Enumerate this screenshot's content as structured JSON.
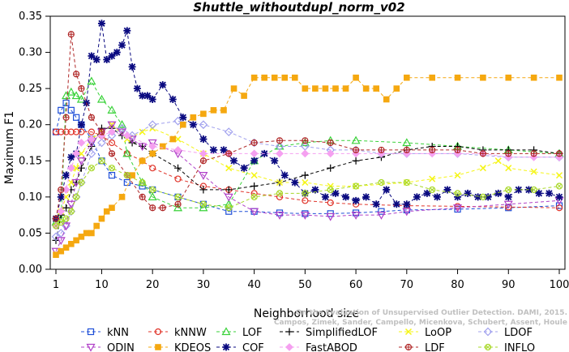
{
  "chart_data": {
    "type": "line",
    "title": "Shuttle_withoutdupl_norm_v02",
    "xlabel": "Neighborhood size",
    "ylabel": "Maximum F1",
    "xlim": [
      1,
      100
    ],
    "ylim": [
      0,
      0.35
    ],
    "xticks": [
      1,
      10,
      20,
      30,
      40,
      50,
      60,
      70,
      80,
      90,
      100
    ],
    "yticks": [
      "0.00",
      "0.05",
      "0.10",
      "0.15",
      "0.20",
      "0.25",
      "0.30",
      "0.35"
    ],
    "grid": false,
    "legend_position": "bottom",
    "watermark": "Campos, Zimek, Sander, Campello, Micenkova, Schubert, Assent, Houle  On the Evaluation of Unsupervised Outlier Detection. DAMI, 2015.",
    "series": [
      {
        "name": "kNN",
        "color": "#1f4fd8",
        "marker": "square",
        "x": [
          1,
          2,
          3,
          4,
          5,
          6,
          8,
          10,
          12,
          15,
          18,
          20,
          25,
          30,
          35,
          40,
          45,
          50,
          55,
          60,
          65,
          70,
          80,
          90,
          100
        ],
        "y": [
          0.19,
          0.22,
          0.23,
          0.22,
          0.21,
          0.2,
          0.18,
          0.15,
          0.13,
          0.12,
          0.115,
          0.11,
          0.1,
          0.09,
          0.08,
          0.08,
          0.078,
          0.077,
          0.077,
          0.078,
          0.08,
          0.082,
          0.083,
          0.085,
          0.088
        ]
      },
      {
        "name": "kNNW",
        "color": "#e0342a",
        "marker": "circle",
        "x": [
          1,
          2,
          3,
          4,
          5,
          6,
          8,
          10,
          12,
          15,
          18,
          20,
          25,
          30,
          35,
          40,
          45,
          50,
          55,
          60,
          70,
          80,
          90,
          100
        ],
        "y": [
          0.19,
          0.19,
          0.19,
          0.19,
          0.19,
          0.19,
          0.19,
          0.185,
          0.175,
          0.16,
          0.15,
          0.14,
          0.125,
          0.115,
          0.11,
          0.105,
          0.1,
          0.095,
          0.092,
          0.09,
          0.088,
          0.087,
          0.086,
          0.085
        ]
      },
      {
        "name": "LOF",
        "color": "#3ad23a",
        "marker": "triangle",
        "x": [
          1,
          2,
          3,
          4,
          5,
          6,
          8,
          10,
          12,
          14,
          15,
          18,
          20,
          25,
          30,
          35,
          40,
          45,
          50,
          55,
          60,
          70,
          80,
          90,
          100
        ],
        "y": [
          0.065,
          0.07,
          0.24,
          0.245,
          0.24,
          0.235,
          0.26,
          0.235,
          0.22,
          0.2,
          0.16,
          0.12,
          0.1,
          0.085,
          0.085,
          0.09,
          0.15,
          0.17,
          0.175,
          0.178,
          0.178,
          0.175,
          0.17,
          0.165,
          0.16
        ]
      },
      {
        "name": "SimplifiedLOF",
        "color": "#000000",
        "marker": "plus",
        "x": [
          1,
          2,
          3,
          4,
          5,
          6,
          8,
          10,
          12,
          14,
          16,
          18,
          20,
          25,
          30,
          35,
          40,
          45,
          50,
          55,
          60,
          65,
          70,
          75,
          80,
          85,
          90,
          95,
          100
        ],
        "y": [
          0.04,
          0.075,
          0.085,
          0.11,
          0.12,
          0.14,
          0.17,
          0.195,
          0.195,
          0.185,
          0.175,
          0.17,
          0.16,
          0.14,
          0.11,
          0.11,
          0.115,
          0.12,
          0.13,
          0.14,
          0.15,
          0.155,
          0.165,
          0.17,
          0.17,
          0.165,
          0.165,
          0.165,
          0.16
        ]
      },
      {
        "name": "LoOP",
        "color": "#f5f516",
        "marker": "x",
        "x": [
          1,
          2,
          3,
          4,
          5,
          6,
          8,
          10,
          12,
          15,
          18,
          20,
          25,
          30,
          35,
          40,
          45,
          50,
          55,
          60,
          70,
          75,
          80,
          85,
          88,
          90,
          95,
          100
        ],
        "y": [
          0.07,
          0.08,
          0.1,
          0.12,
          0.14,
          0.16,
          0.18,
          0.19,
          0.2,
          0.18,
          0.19,
          0.195,
          0.18,
          0.16,
          0.14,
          0.13,
          0.12,
          0.12,
          0.115,
          0.115,
          0.12,
          0.125,
          0.13,
          0.14,
          0.15,
          0.14,
          0.135,
          0.13
        ]
      },
      {
        "name": "LDOF",
        "color": "#a0a0ee",
        "marker": "diamond",
        "x": [
          1,
          2,
          3,
          4,
          5,
          6,
          8,
          10,
          12,
          14,
          16,
          20,
          25,
          30,
          35,
          40,
          45,
          50,
          55,
          60,
          65,
          70,
          80,
          90,
          100
        ],
        "y": [
          0.045,
          0.05,
          0.06,
          0.08,
          0.1,
          0.12,
          0.16,
          0.175,
          0.185,
          0.195,
          0.185,
          0.2,
          0.205,
          0.2,
          0.19,
          0.175,
          0.17,
          0.17,
          0.165,
          0.165,
          0.16,
          0.16,
          0.16,
          0.155,
          0.155
        ]
      },
      {
        "name": "ODIN",
        "color": "#b040c8",
        "marker": "triangle-down",
        "x": [
          1,
          2,
          3,
          4,
          5,
          6,
          8,
          10,
          12,
          14,
          16,
          18,
          20,
          25,
          30,
          35,
          40,
          45,
          50,
          55,
          60,
          65,
          70,
          80,
          90,
          100
        ],
        "y": [
          0.025,
          0.04,
          0.06,
          0.09,
          0.12,
          0.15,
          0.175,
          0.19,
          0.2,
          0.19,
          0.18,
          0.17,
          0.175,
          0.16,
          0.13,
          0.1,
          0.08,
          0.075,
          0.075,
          0.073,
          0.075,
          0.075,
          0.08,
          0.085,
          0.09,
          0.095
        ]
      },
      {
        "name": "KDEOS",
        "color": "#f5a810",
        "marker": "square-filled",
        "x": [
          1,
          2,
          3,
          4,
          5,
          6,
          7,
          8,
          9,
          10,
          11,
          12,
          14,
          16,
          18,
          20,
          22,
          24,
          26,
          28,
          30,
          32,
          34,
          36,
          38,
          40,
          42,
          44,
          46,
          48,
          50,
          52,
          54,
          56,
          58,
          60,
          62,
          64,
          66,
          68,
          70,
          75,
          80,
          85,
          90,
          95,
          100
        ],
        "y": [
          0.02,
          0.025,
          0.03,
          0.035,
          0.04,
          0.045,
          0.05,
          0.05,
          0.06,
          0.07,
          0.08,
          0.085,
          0.1,
          0.13,
          0.15,
          0.16,
          0.17,
          0.18,
          0.2,
          0.21,
          0.215,
          0.22,
          0.22,
          0.25,
          0.24,
          0.265,
          0.265,
          0.265,
          0.265,
          0.265,
          0.25,
          0.25,
          0.25,
          0.25,
          0.25,
          0.265,
          0.25,
          0.25,
          0.235,
          0.25,
          0.265,
          0.265,
          0.265,
          0.265,
          0.265,
          0.265,
          0.265
        ]
      },
      {
        "name": "COF",
        "color": "#0a0a80",
        "marker": "asterisk",
        "x": [
          1,
          2,
          3,
          4,
          5,
          6,
          7,
          8,
          9,
          10,
          11,
          12,
          13,
          14,
          15,
          16,
          17,
          18,
          19,
          20,
          22,
          24,
          26,
          28,
          30,
          32,
          34,
          36,
          38,
          40,
          42,
          44,
          46,
          48,
          50,
          52,
          54,
          56,
          58,
          60,
          62,
          64,
          66,
          68,
          70,
          72,
          74,
          76,
          78,
          80,
          82,
          84,
          86,
          88,
          90,
          92,
          94,
          96,
          98,
          100
        ],
        "y": [
          0.07,
          0.1,
          0.13,
          0.155,
          0.16,
          0.2,
          0.23,
          0.295,
          0.29,
          0.34,
          0.29,
          0.295,
          0.3,
          0.31,
          0.33,
          0.28,
          0.25,
          0.24,
          0.24,
          0.235,
          0.255,
          0.235,
          0.21,
          0.2,
          0.18,
          0.165,
          0.165,
          0.15,
          0.14,
          0.15,
          0.16,
          0.15,
          0.13,
          0.12,
          0.105,
          0.11,
          0.1,
          0.105,
          0.1,
          0.095,
          0.1,
          0.09,
          0.11,
          0.09,
          0.09,
          0.1,
          0.105,
          0.1,
          0.11,
          0.1,
          0.105,
          0.1,
          0.1,
          0.105,
          0.1,
          0.11,
          0.11,
          0.105,
          0.105,
          0.1
        ]
      },
      {
        "name": "FastABOD",
        "color": "#f5a0f0",
        "marker": "diamond-filled",
        "x": [
          1,
          2,
          3,
          4,
          5,
          6,
          8,
          10,
          12,
          15,
          20,
          25,
          30,
          35,
          40,
          45,
          50,
          55,
          60,
          65,
          70,
          75,
          80,
          85,
          90,
          95,
          100
        ],
        "y": [
          0.06,
          0.08,
          0.11,
          0.14,
          0.16,
          0.175,
          0.18,
          0.185,
          0.19,
          0.185,
          0.17,
          0.165,
          0.16,
          0.16,
          0.16,
          0.16,
          0.16,
          0.16,
          0.16,
          0.16,
          0.16,
          0.16,
          0.16,
          0.16,
          0.155,
          0.155,
          0.155
        ]
      },
      {
        "name": "LDF",
        "color": "#b02828",
        "marker": "circle-plus",
        "x": [
          1,
          2,
          3,
          4,
          5,
          6,
          8,
          10,
          12,
          15,
          18,
          20,
          22,
          25,
          30,
          35,
          40,
          45,
          50,
          55,
          60,
          65,
          70,
          75,
          80,
          85,
          90,
          95,
          100
        ],
        "y": [
          0.07,
          0.11,
          0.21,
          0.325,
          0.27,
          0.25,
          0.21,
          0.19,
          0.16,
          0.13,
          0.1,
          0.085,
          0.085,
          0.09,
          0.15,
          0.16,
          0.175,
          0.178,
          0.178,
          0.175,
          0.165,
          0.165,
          0.165,
          0.165,
          0.165,
          0.16,
          0.16,
          0.16,
          0.16
        ]
      },
      {
        "name": "INFLO",
        "color": "#a8d828",
        "marker": "circle-x",
        "x": [
          1,
          2,
          3,
          4,
          5,
          6,
          8,
          10,
          12,
          15,
          18,
          20,
          25,
          30,
          35,
          40,
          45,
          50,
          55,
          60,
          65,
          70,
          75,
          80,
          85,
          90,
          95,
          100
        ],
        "y": [
          0.06,
          0.065,
          0.07,
          0.08,
          0.1,
          0.12,
          0.14,
          0.15,
          0.14,
          0.13,
          0.12,
          0.11,
          0.1,
          0.09,
          0.085,
          0.1,
          0.105,
          0.105,
          0.11,
          0.115,
          0.12,
          0.12,
          0.11,
          0.105,
          0.1,
          0.11,
          0.11,
          0.115
        ]
      }
    ]
  }
}
